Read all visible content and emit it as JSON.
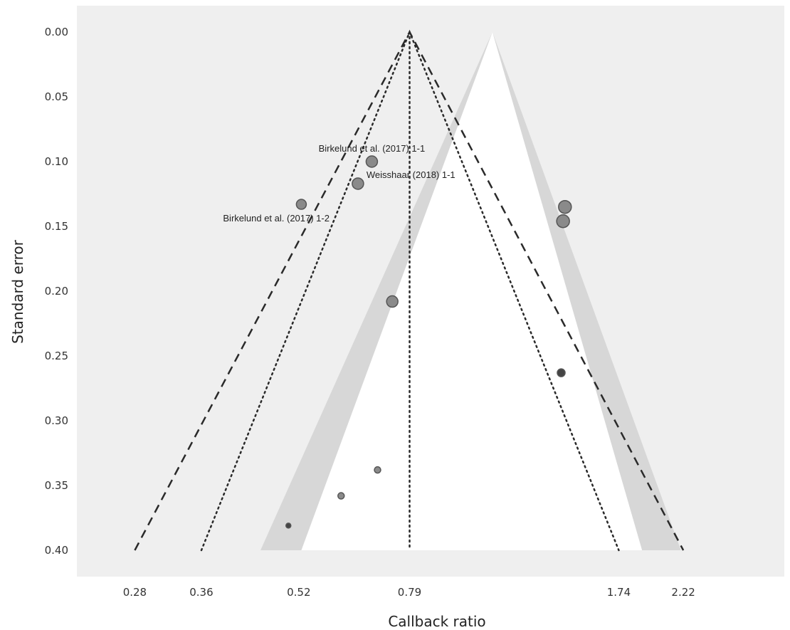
{
  "chart_data": {
    "type": "scatter",
    "subtype": "funnel-plot",
    "title": "",
    "xlabel": "Callback ratio",
    "ylabel": "Standard error",
    "x_scale": "log",
    "xlim": [
      0.225,
      3.25
    ],
    "ylim": [
      0.0,
      0.43
    ],
    "y_reversed": true,
    "x_ticks": [
      0.28,
      0.36,
      0.52,
      0.79,
      1.74,
      2.22
    ],
    "x_tick_labels": [
      "0.28",
      "0.36",
      "0.52",
      "0.79",
      "1.74",
      "2.22"
    ],
    "y_ticks": [
      0.0,
      0.05,
      0.1,
      0.15,
      0.2,
      0.25,
      0.3,
      0.35,
      0.4
    ],
    "y_tick_labels": [
      "0.00",
      "0.05",
      "0.10",
      "0.15",
      "0.20",
      "0.25",
      "0.30",
      "0.35",
      "0.40"
    ],
    "grid": false,
    "colors": {
      "background": "#efefef",
      "funnel_outer": "#d7d7d7",
      "funnel_inner": "#ffffff",
      "point_fill": "#8a8a8a",
      "point_stroke": "#555555",
      "point_dark": "#444444",
      "line": "#2a2a2a"
    },
    "funnel": {
      "apex_x": 1.08,
      "apex_se": 0.0,
      "base_se": 0.4,
      "inner_base": [
        0.525,
        1.9
      ],
      "outer_base": [
        0.45,
        2.2
      ]
    },
    "reference_lines": {
      "vertical_x": 0.79,
      "dashed": {
        "apex": [
          0.79,
          0.0
        ],
        "left_end": [
          0.28,
          0.4
        ],
        "right_end": [
          2.22,
          0.4
        ]
      },
      "dotted": {
        "apex": [
          0.79,
          0.0
        ],
        "left_end": [
          0.36,
          0.4
        ],
        "right_end": [
          1.74,
          0.4
        ]
      }
    },
    "points": [
      {
        "x": 0.685,
        "se": 0.1,
        "size": "large",
        "label": "Birkelund et al. (2017) 1-1"
      },
      {
        "x": 0.65,
        "se": 0.117,
        "size": "large",
        "label": "Weisshaar (2018) 1-1"
      },
      {
        "x": 0.525,
        "se": 0.133,
        "size": "medium",
        "label": "Birkelund et al. (2017) 1-2"
      },
      {
        "x": 1.42,
        "se": 0.135,
        "size": "xlarge",
        "label": ""
      },
      {
        "x": 1.41,
        "se": 0.146,
        "size": "xlarge",
        "label": ""
      },
      {
        "x": 0.74,
        "se": 0.208,
        "size": "large",
        "label": ""
      },
      {
        "x": 1.4,
        "se": 0.263,
        "size": "small",
        "label": "",
        "dark": true
      },
      {
        "x": 0.7,
        "se": 0.338,
        "size": "tiny",
        "label": ""
      },
      {
        "x": 0.61,
        "se": 0.358,
        "size": "tiny",
        "label": ""
      },
      {
        "x": 0.5,
        "se": 0.381,
        "size": "micro",
        "label": "",
        "dark": true
      }
    ]
  }
}
